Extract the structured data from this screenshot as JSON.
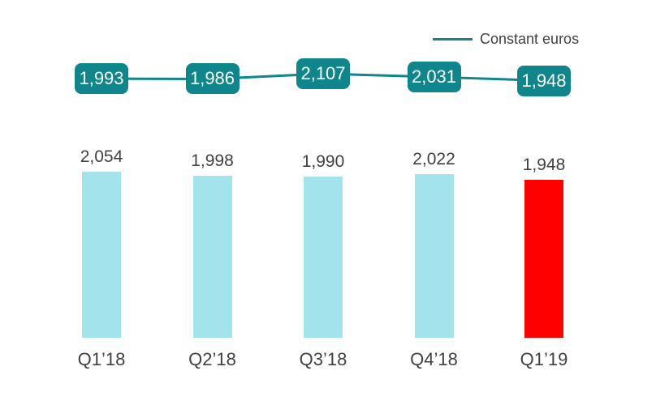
{
  "page": {
    "background": "#ffffff"
  },
  "chart_data": {
    "type": "combo",
    "categories": [
      "Q1’18",
      "Q2’18",
      "Q3’18",
      "Q4’18",
      "Q1’19"
    ],
    "series": [
      {
        "type": "bar",
        "values": [
          2054,
          1998,
          1990,
          2022,
          1948
        ],
        "labels": [
          "2,054",
          "1,998",
          "1,990",
          "2,022",
          "1,948"
        ]
      },
      {
        "type": "line",
        "name": "Constant euros",
        "values": [
          1993,
          1986,
          2107,
          2031,
          1948
        ],
        "labels": [
          "1,993",
          "1,986",
          "2,107",
          "2,031",
          "1,948"
        ]
      }
    ],
    "highlight_category": "Q1’19",
    "legend": {
      "label": "Constant euros",
      "position": "top-right"
    },
    "colors": {
      "bar": "#a3e3ec",
      "bar_highlight": "#fe0000",
      "line": "#0e868c",
      "point_box": "#0e868c",
      "point_text": "#ffffff",
      "text": "#414042"
    },
    "axes": {
      "x_visible": false,
      "y_visible": false,
      "gridlines": false
    }
  }
}
